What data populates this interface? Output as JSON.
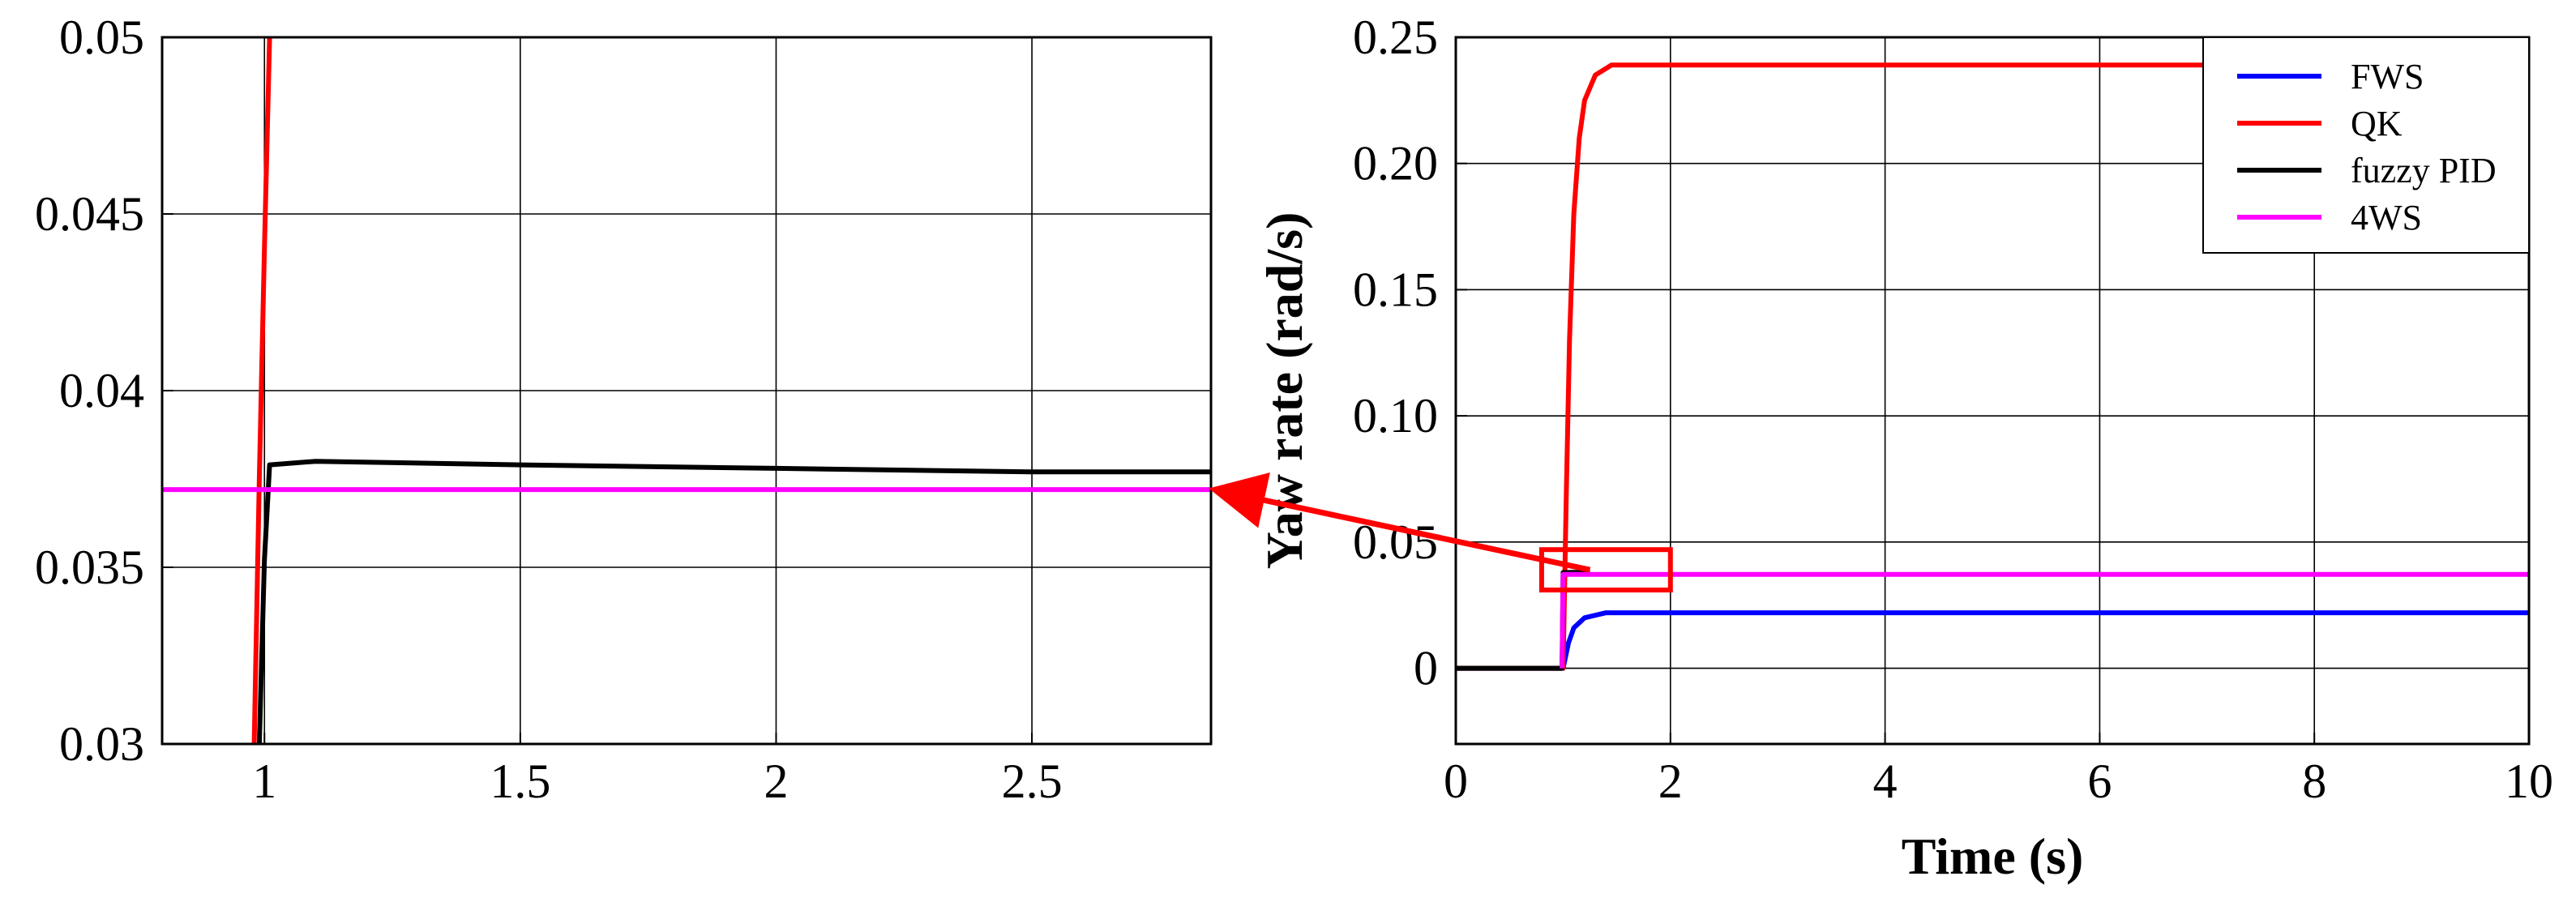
{
  "chart_data": [
    {
      "type": "line",
      "panel": "zoomed-inset",
      "title": "",
      "xlabel": "",
      "ylabel": "",
      "xlim": [
        0.8,
        2.85
      ],
      "ylim": [
        0.03,
        0.05
      ],
      "xticks": [
        1,
        1.5,
        2,
        2.5
      ],
      "xtick_labels": [
        "1",
        "1.5",
        "2",
        "2.5"
      ],
      "yticks": [
        0.03,
        0.035,
        0.04,
        0.045,
        0.05
      ],
      "ytick_labels": [
        "0.03",
        "0.035",
        "0.04",
        "0.045",
        "0.05"
      ],
      "grid": true,
      "legend": false,
      "series": [
        {
          "name": "QK",
          "color": "#ff0000",
          "x": [
            0.98,
            0.99,
            1.0,
            1.01
          ],
          "y": [
            0.03,
            0.0375,
            0.044,
            0.05
          ]
        },
        {
          "name": "fuzzy PID",
          "color": "#000000",
          "x": [
            0.99,
            1.0,
            1.01,
            1.1,
            1.5,
            2.0,
            2.5,
            2.85
          ],
          "y": [
            0.03,
            0.0352,
            0.0379,
            0.038,
            0.0379,
            0.0378,
            0.0377,
            0.0377
          ]
        },
        {
          "name": "4WS",
          "color": "#ff00ff",
          "x": [
            0.8,
            2.85
          ],
          "y": [
            0.0372,
            0.0372
          ]
        }
      ]
    },
    {
      "type": "line",
      "panel": "main",
      "title": "",
      "xlabel": "Time (s)",
      "ylabel": "Yaw rate (rad/s)",
      "xlim": [
        0,
        10
      ],
      "ylim": [
        -0.03,
        0.25
      ],
      "xticks": [
        0,
        2,
        4,
        6,
        8,
        10
      ],
      "xtick_labels": [
        "0",
        "2",
        "4",
        "6",
        "8",
        "10"
      ],
      "yticks": [
        0,
        0.05,
        0.1,
        0.15,
        0.2,
        0.25
      ],
      "ytick_labels": [
        "0",
        "0.05",
        "0.10",
        "0.15",
        "0.20",
        "0.25"
      ],
      "grid": true,
      "legend": "top-right",
      "zoom_box": {
        "x": [
          0.8,
          2.0
        ],
        "y": [
          0.031,
          0.047
        ]
      },
      "series": [
        {
          "name": "FWS",
          "color": "#0000ff",
          "x": [
            0,
            1.0,
            1.05,
            1.1,
            1.2,
            1.4,
            2,
            10
          ],
          "y": [
            0,
            0,
            0.01,
            0.016,
            0.02,
            0.022,
            0.022,
            0.022
          ]
        },
        {
          "name": "QK",
          "color": "#ff0000",
          "x": [
            0,
            1.0,
            1.03,
            1.06,
            1.1,
            1.15,
            1.2,
            1.3,
            1.45,
            1.6,
            7.0
          ],
          "y": [
            0,
            0,
            0.07,
            0.13,
            0.18,
            0.21,
            0.225,
            0.235,
            0.239,
            0.239,
            0.239
          ]
        },
        {
          "name": "fuzzy PID",
          "color": "#000000",
          "x": [
            0,
            0.99,
            1.0,
            1.1,
            1.25
          ],
          "y": [
            0,
            0,
            0.0379,
            0.038,
            0.0378
          ]
        },
        {
          "name": "4WS",
          "color": "#ff00ff",
          "x": [
            0.99,
            1.0,
            10
          ],
          "y": [
            0.0,
            0.0372,
            0.0372
          ]
        }
      ]
    }
  ]
}
